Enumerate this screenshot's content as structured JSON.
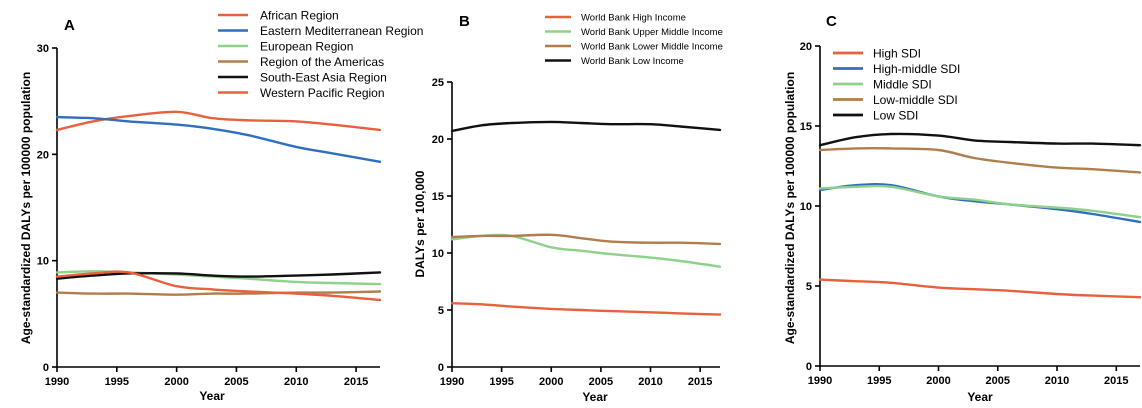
{
  "chart_data": [
    {
      "type": "line",
      "panel_label": "A",
      "xlabel": "Year",
      "ylabel": "Age-standardized DALYs per 100000 population",
      "xlim": [
        1990,
        2017
      ],
      "ylim": [
        0,
        30
      ],
      "xticks": [
        1990,
        1995,
        2000,
        2005,
        2010,
        2015
      ],
      "yticks": [
        0,
        10,
        20,
        30
      ],
      "x": [
        1990,
        1993,
        1996,
        2000,
        2003,
        2006,
        2010,
        2013,
        2017
      ],
      "grid": false,
      "legend_position": "top",
      "series": [
        {
          "name": "African Region",
          "color": "#e8603c",
          "values": [
            22.3,
            23.1,
            23.6,
            24.0,
            23.4,
            23.2,
            23.1,
            22.8,
            22.3
          ]
        },
        {
          "name": "Eastern Mediterranean Region",
          "color": "#2f6fbe",
          "values": [
            23.5,
            23.4,
            23.1,
            22.8,
            22.4,
            21.8,
            20.7,
            20.1,
            19.3
          ]
        },
        {
          "name": "European Region",
          "color": "#8fd08a",
          "values": [
            8.9,
            9.0,
            8.9,
            8.7,
            8.5,
            8.3,
            8.0,
            7.9,
            7.8
          ]
        },
        {
          "name": "Region of the Americas",
          "color": "#b07e4c",
          "values": [
            7.0,
            6.9,
            6.9,
            6.8,
            6.9,
            6.9,
            7.0,
            7.0,
            7.1
          ]
        },
        {
          "name": "South-East Asia Region",
          "color": "#111111",
          "values": [
            8.3,
            8.6,
            8.8,
            8.8,
            8.6,
            8.5,
            8.6,
            8.7,
            8.9
          ]
        },
        {
          "name": "Western Pacific Region",
          "color": "#e8603c",
          "values": [
            8.5,
            8.8,
            8.9,
            7.6,
            7.3,
            7.1,
            6.9,
            6.7,
            6.3
          ]
        }
      ]
    },
    {
      "type": "line",
      "panel_label": "B",
      "xlabel": "Year",
      "ylabel": "DALYs per 100,000",
      "xlim": [
        1990,
        2017
      ],
      "ylim": [
        0,
        25
      ],
      "xticks": [
        1990,
        1995,
        2000,
        2005,
        2010,
        2015
      ],
      "yticks": [
        0,
        5,
        10,
        15,
        20,
        25
      ],
      "x": [
        1990,
        1993,
        1996,
        2000,
        2003,
        2006,
        2010,
        2013,
        2017
      ],
      "grid": false,
      "legend_position": "top",
      "series": [
        {
          "name": "World Bank High Income",
          "color": "#e8603c",
          "values": [
            5.6,
            5.5,
            5.3,
            5.1,
            5.0,
            4.9,
            4.8,
            4.7,
            4.6
          ]
        },
        {
          "name": "World Bank Upper Middle Income",
          "color": "#8fd08a",
          "values": [
            11.2,
            11.5,
            11.5,
            10.5,
            10.2,
            9.9,
            9.6,
            9.3,
            8.8
          ]
        },
        {
          "name": "World Bank Lower Middle Income",
          "color": "#b07e4c",
          "values": [
            11.4,
            11.5,
            11.5,
            11.6,
            11.3,
            11.0,
            10.9,
            10.9,
            10.8
          ]
        },
        {
          "name": "World Bank Low Income",
          "color": "#111111",
          "values": [
            20.7,
            21.2,
            21.4,
            21.5,
            21.4,
            21.3,
            21.3,
            21.1,
            20.8
          ]
        }
      ]
    },
    {
      "type": "line",
      "panel_label": "C",
      "xlabel": "Year",
      "ylabel": "Age-standardized DALYs per 100000 population",
      "xlim": [
        1990,
        2017
      ],
      "ylim": [
        0,
        20
      ],
      "xticks": [
        1990,
        1995,
        2000,
        2005,
        2010,
        2015
      ],
      "yticks": [
        0,
        5,
        10,
        15,
        20
      ],
      "x": [
        1990,
        1993,
        1996,
        2000,
        2003,
        2006,
        2010,
        2013,
        2017
      ],
      "grid": false,
      "legend_position": "top-left",
      "series": [
        {
          "name": "High SDI",
          "color": "#e8603c",
          "values": [
            5.4,
            5.3,
            5.2,
            4.9,
            4.8,
            4.7,
            4.5,
            4.4,
            4.3
          ]
        },
        {
          "name": "High-middle SDI",
          "color": "#2f6fbe",
          "values": [
            11.0,
            11.3,
            11.3,
            10.6,
            10.3,
            10.1,
            9.8,
            9.5,
            9.0
          ]
        },
        {
          "name": "Middle SDI",
          "color": "#8fd08a",
          "values": [
            11.1,
            11.2,
            11.2,
            10.6,
            10.4,
            10.1,
            9.9,
            9.7,
            9.3
          ]
        },
        {
          "name": "Low-middle SDI",
          "color": "#b07e4c",
          "values": [
            13.5,
            13.6,
            13.6,
            13.5,
            13.0,
            12.7,
            12.4,
            12.3,
            12.1
          ]
        },
        {
          "name": "Low SDI",
          "color": "#111111",
          "values": [
            13.8,
            14.3,
            14.5,
            14.4,
            14.1,
            14.0,
            13.9,
            13.9,
            13.8
          ]
        }
      ]
    }
  ]
}
